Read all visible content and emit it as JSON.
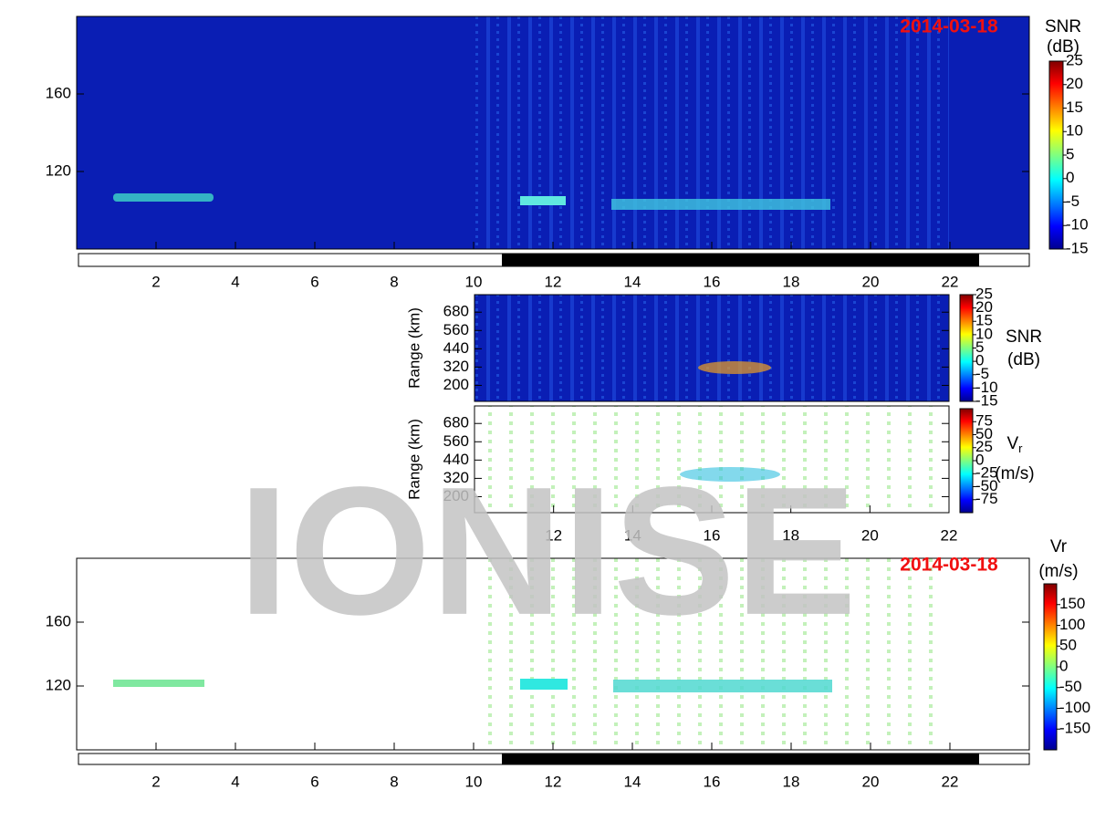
{
  "watermark": "IONISE",
  "chart_data": [
    {
      "type": "heatmap",
      "date": "2014-03-18",
      "xlim": [
        0,
        24
      ],
      "xticks": [
        2,
        4,
        6,
        8,
        10,
        12,
        14,
        16,
        18,
        20,
        22
      ],
      "ylim": [
        80,
        200
      ],
      "yticks": [
        120,
        160
      ],
      "colorbar": {
        "lim": [
          -15,
          25
        ],
        "ticks": [
          25,
          20,
          15,
          10,
          5,
          0,
          -5,
          -10,
          -15
        ],
        "label": [
          [
            "SNR"
          ],
          [
            "(dB)"
          ]
        ]
      }
    },
    {
      "type": "heatmap",
      "ylabel": "Range (km)",
      "xlim": [
        10,
        22
      ],
      "ylim": [
        95,
        795
      ],
      "yticks": [
        200,
        320,
        440,
        560,
        680
      ],
      "colorbar": {
        "lim": [
          -15,
          25
        ],
        "ticks": [
          25,
          20,
          15,
          10,
          5,
          0,
          -5,
          -10,
          -15
        ],
        "label": [
          [
            "SNR"
          ],
          [
            "(dB)"
          ]
        ]
      }
    },
    {
      "type": "heatmap",
      "ylabel": "Range (km)",
      "xlim": [
        10,
        22
      ],
      "xticks": [
        12,
        14,
        16,
        18,
        20,
        22
      ],
      "ylim": [
        95,
        795
      ],
      "yticks": [
        200,
        320,
        440,
        560,
        680
      ],
      "colorbar": {
        "lim": [
          -100,
          100
        ],
        "ticks": [
          75,
          50,
          25,
          0,
          -25,
          -50,
          -75
        ],
        "label": [
          [
            "V",
            "r"
          ],
          [
            "(m/s)"
          ]
        ]
      }
    },
    {
      "type": "heatmap",
      "date": "2014-03-18",
      "xlim": [
        0,
        24
      ],
      "xticks": [
        2,
        4,
        6,
        8,
        10,
        12,
        14,
        16,
        18,
        20,
        22
      ],
      "ylim": [
        80,
        200
      ],
      "yticks": [
        120,
        160
      ],
      "colorbar": {
        "lim": [
          -200,
          200
        ],
        "ticks": [
          150,
          100,
          50,
          0,
          -50,
          -100,
          -150
        ],
        "label": [
          [
            "Vr"
          ],
          [
            "(m/s)"
          ]
        ]
      }
    }
  ]
}
